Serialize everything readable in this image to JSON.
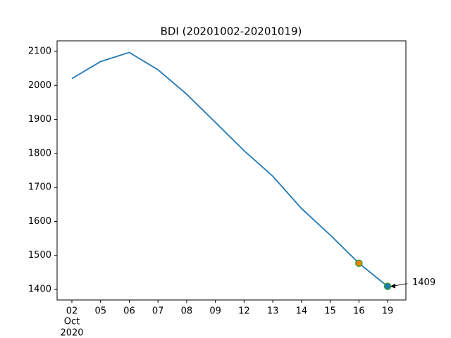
{
  "chart_data": {
    "type": "line",
    "title": "BDI (20201002-20201019)",
    "categories": [
      "02",
      "05",
      "06",
      "07",
      "08",
      "09",
      "12",
      "13",
      "14",
      "15",
      "16",
      "19"
    ],
    "x_month_label": "Oct",
    "x_year_label": "2020",
    "values": [
      2020,
      2070,
      2097,
      2046,
      1974,
      1891,
      1808,
      1733,
      1638,
      1560,
      1477,
      1409
    ],
    "color": "#1f77b4",
    "markers": [
      {
        "category": "16",
        "fill": "#ff7f0e",
        "edge": "#2ca02c"
      },
      {
        "category": "19",
        "fill": "#1f77b4",
        "edge": "#2ca02c"
      }
    ],
    "ylim": [
      1369,
      2131
    ],
    "yticks": [
      1400,
      1500,
      1600,
      1700,
      1800,
      1900,
      2000,
      2100
    ],
    "grid": false
  }
}
